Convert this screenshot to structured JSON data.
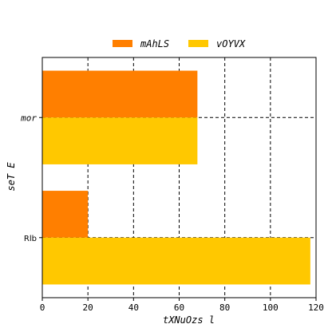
{
  "chart_data": {
    "type": "bar",
    "orientation": "horizontal",
    "categories": [
      "mor",
      "Rlb"
    ],
    "series": [
      {
        "name": "mAhLS",
        "values": [
          68,
          20
        ],
        "color": "#ff7f00"
      },
      {
        "name": "vOYVX",
        "values": [
          68,
          117.5
        ],
        "color": "#ffc800"
      }
    ],
    "xlabel": "tXNuOzs  l",
    "ylabel": "seT  E",
    "xlim": [
      0,
      120
    ],
    "xticks": [
      0,
      20,
      40,
      60,
      80,
      100,
      120
    ],
    "xtick_labels": [
      "0",
      "20",
      "40",
      "60",
      "80",
      "100",
      "120"
    ],
    "grid": true,
    "grid_style": "dashed",
    "legend_position": "top-center"
  }
}
